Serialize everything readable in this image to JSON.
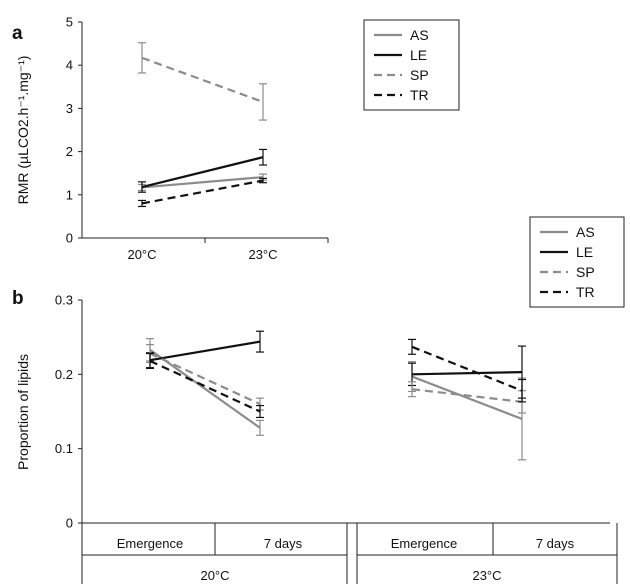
{
  "colors": {
    "solid_grey": "#8c8c8c",
    "black": "#111111",
    "dashed_grey": "#9a9a9a",
    "dashed_black": "#111111"
  },
  "chart_data": [
    {
      "panel": "a",
      "type": "line",
      "ylabel": "RMR (µLCO2.h⁻¹.mg⁻¹)",
      "categories": [
        "20°C",
        "23°C"
      ],
      "ylim": [
        0,
        5
      ],
      "yticks": [
        "0",
        "1",
        "2",
        "3",
        "4",
        "5"
      ],
      "legend": "top-right",
      "series": [
        {
          "name": "AS",
          "style": "solid",
          "color": "grey",
          "values": [
            1.17,
            1.41
          ],
          "err": [
            0.07,
            0.07
          ]
        },
        {
          "name": "LE",
          "style": "solid",
          "color": "black",
          "values": [
            1.18,
            1.87
          ],
          "err": [
            0.12,
            0.18
          ]
        },
        {
          "name": "SP",
          "style": "dashed",
          "color": "grey",
          "values": [
            4.17,
            3.15
          ],
          "err": [
            0.35,
            0.42
          ]
        },
        {
          "name": "TR",
          "style": "dashed",
          "color": "black",
          "values": [
            0.8,
            1.33
          ],
          "err": [
            0.07,
            0.05
          ]
        }
      ]
    },
    {
      "panel": "b",
      "type": "line",
      "ylabel": "Proportion of lipids",
      "groups": [
        {
          "label": "20°C",
          "categories": [
            "Emergence",
            "7 days"
          ]
        },
        {
          "label": "23°C",
          "categories": [
            "Emergence",
            "7 days"
          ]
        }
      ],
      "ylim": [
        0,
        0.3
      ],
      "yticks": [
        "0",
        "0.1",
        "0.2",
        "0.3"
      ],
      "legend": "top-right",
      "series": [
        {
          "name": "AS",
          "style": "solid",
          "color": "grey",
          "values": [
            0.233,
            0.128,
            0.197,
            0.14
          ],
          "err": [
            0.015,
            0.01,
            0.02,
            0.055
          ]
        },
        {
          "name": "LE",
          "style": "solid",
          "color": "black",
          "values": [
            0.219,
            0.244,
            0.2,
            0.203
          ],
          "err": [
            0.01,
            0.014,
            0.015,
            0.035
          ]
        },
        {
          "name": "SP",
          "style": "dashed",
          "color": "grey",
          "values": [
            0.228,
            0.16,
            0.18,
            0.163
          ],
          "err": [
            0.012,
            0.008,
            0.01,
            0.015
          ]
        },
        {
          "name": "TR",
          "style": "dashed",
          "color": "black",
          "values": [
            0.218,
            0.15,
            0.237,
            0.178
          ],
          "err": [
            0.01,
            0.008,
            0.01,
            0.015
          ]
        }
      ]
    }
  ]
}
